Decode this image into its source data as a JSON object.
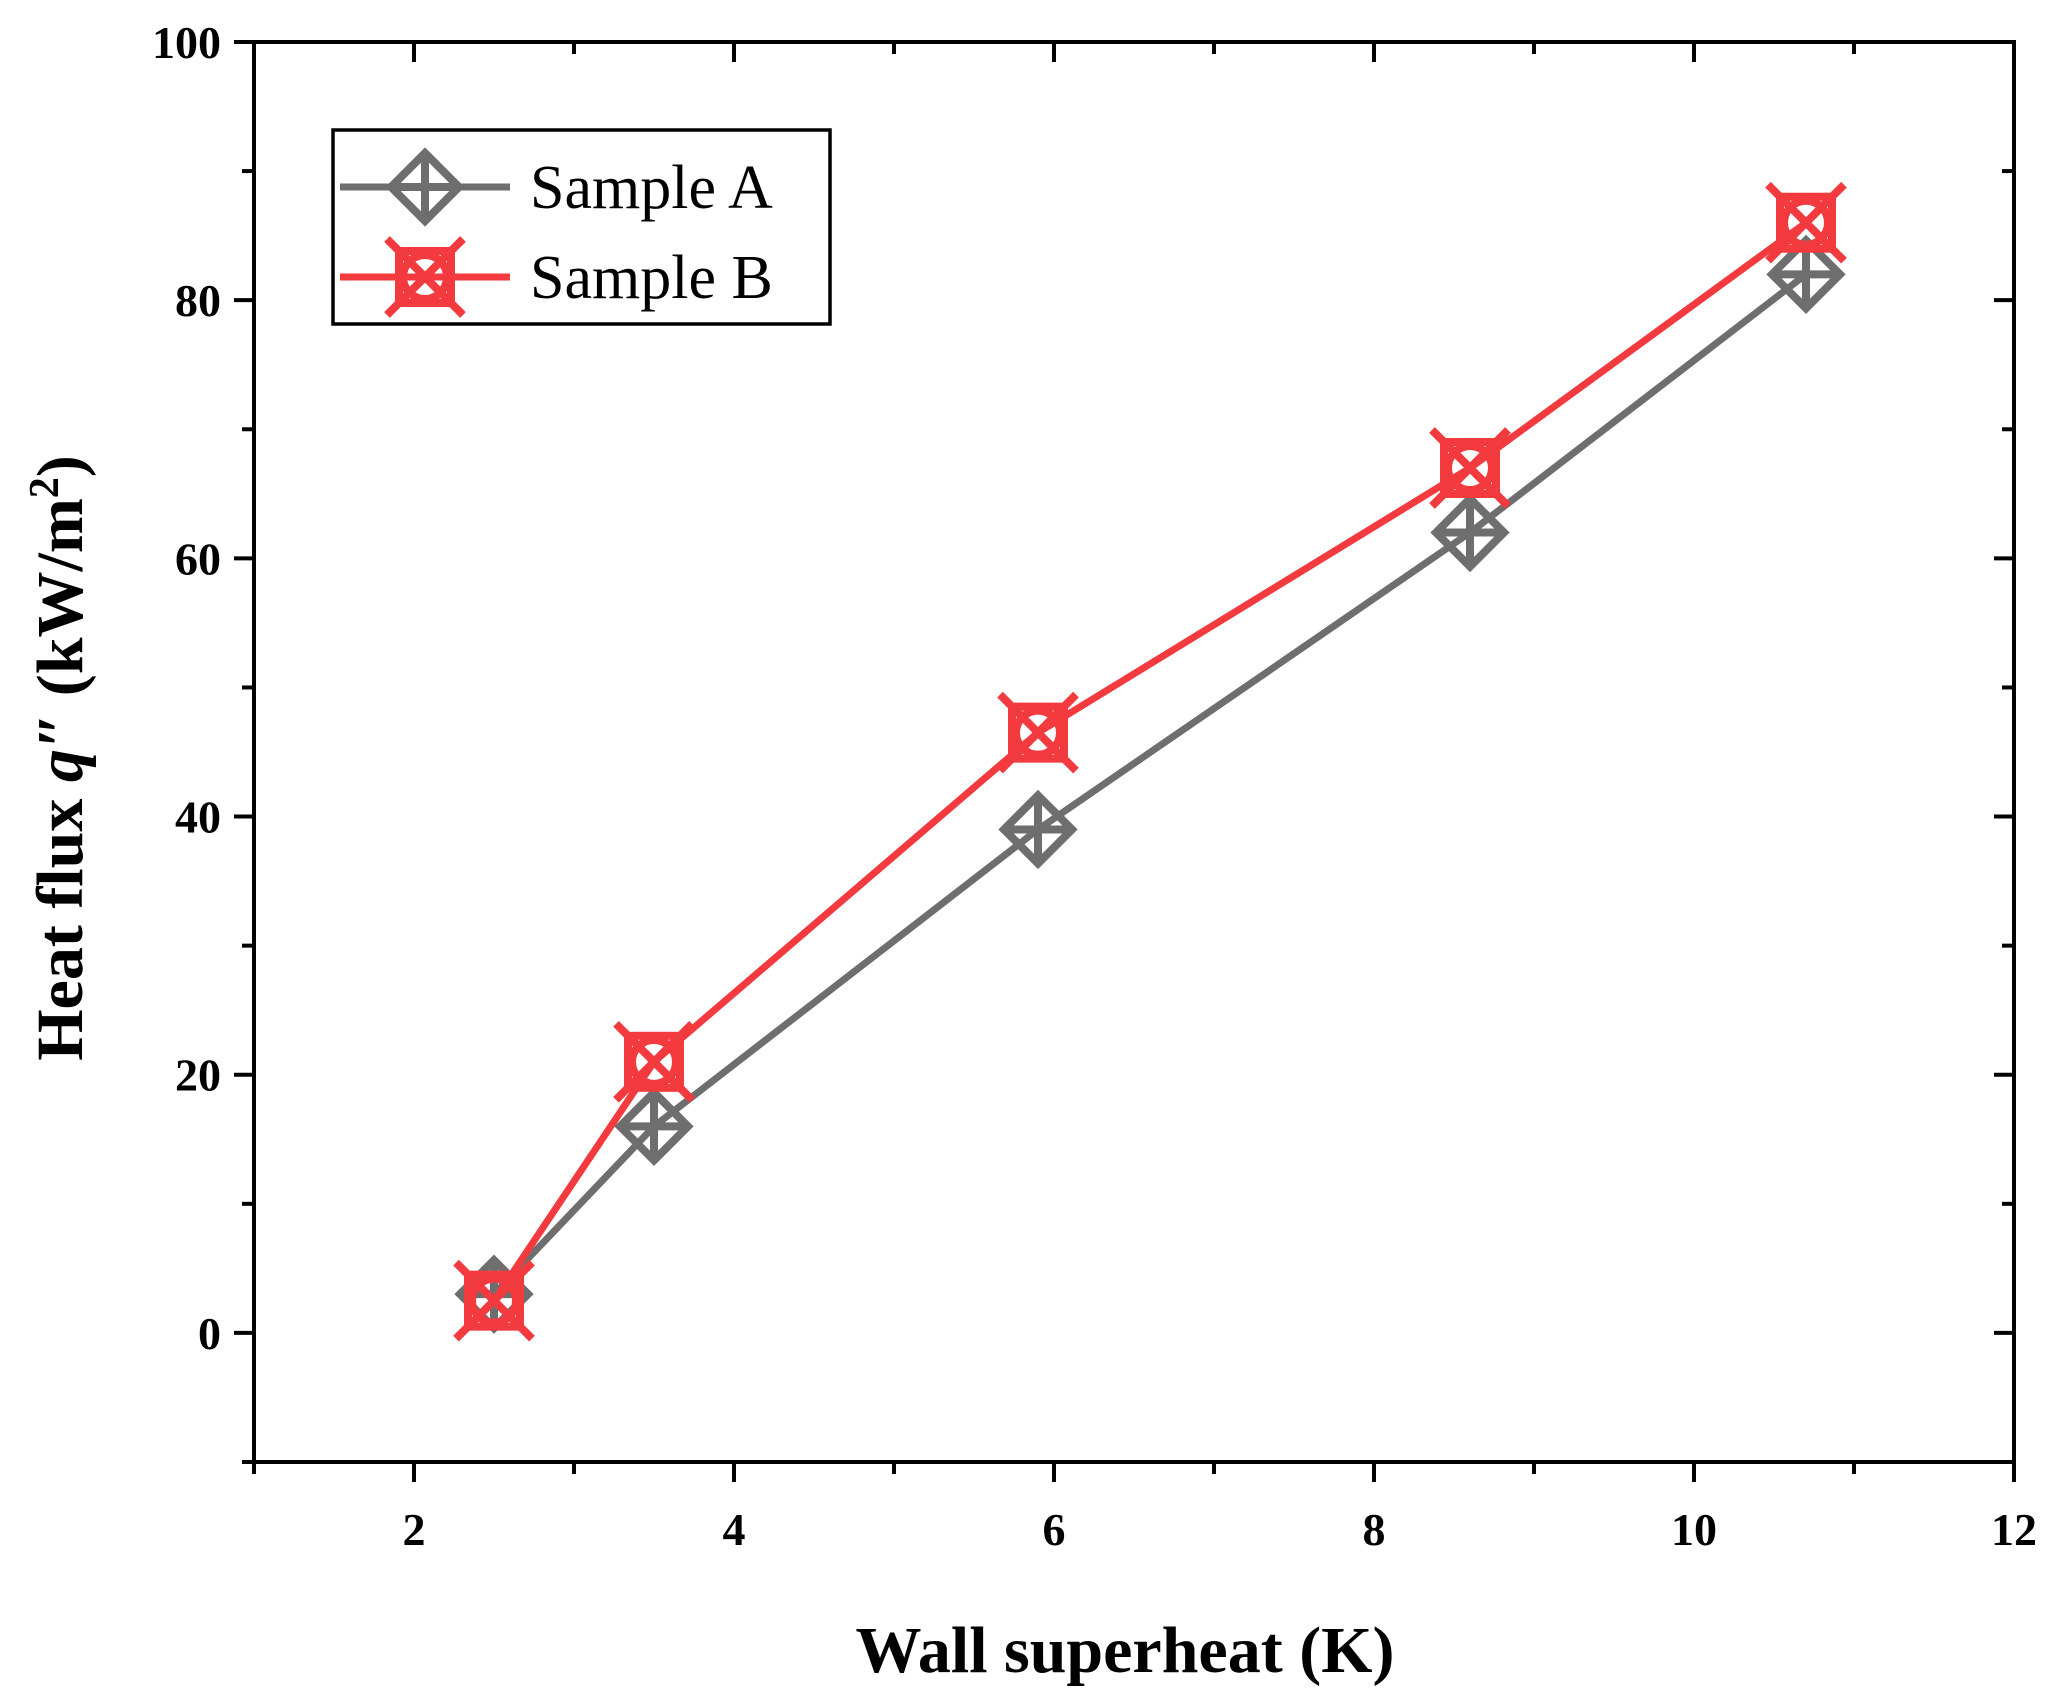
{
  "chart_data": {
    "type": "line",
    "title": "",
    "xlabel": "Wall superheat (K)",
    "ylabel": {
      "prefix": "Heat flux ",
      "symbol": "q",
      "prime": "″",
      "unit_open": " (kW/m",
      "unit_sup": "2",
      "unit_close": ")"
    },
    "xlim": [
      1,
      12
    ],
    "ylim": [
      -10,
      100
    ],
    "x_ticks": [
      2,
      4,
      6,
      8,
      10,
      12
    ],
    "y_ticks": [
      0,
      20,
      40,
      60,
      80,
      100
    ],
    "legend_position": "top-left",
    "grid": false,
    "series": [
      {
        "name": "Sample A",
        "color": "#6e6e6e",
        "marker": "diamond-plus",
        "x": [
          2.5,
          3.5,
          5.9,
          8.6,
          10.7
        ],
        "y": [
          3,
          16,
          39,
          62,
          82
        ]
      },
      {
        "name": "Sample B",
        "color": "#f23a3f",
        "marker": "square-x-circle",
        "x": [
          2.5,
          3.5,
          5.9,
          8.6,
          10.7
        ],
        "y": [
          2.5,
          21,
          46.5,
          67,
          86
        ]
      }
    ]
  }
}
